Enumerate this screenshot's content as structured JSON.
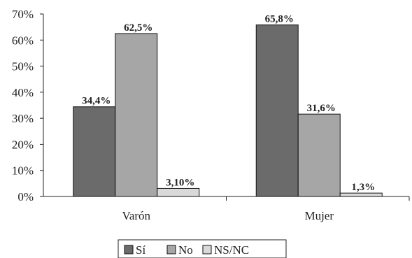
{
  "chart_data": {
    "type": "bar",
    "categories": [
      "Varón",
      "Mujer"
    ],
    "series": [
      {
        "name": "Sí",
        "values": [
          34.4,
          65.8
        ],
        "labels": [
          "34,4%",
          "65,8%"
        ],
        "color": "#6b6b6b"
      },
      {
        "name": "No",
        "values": [
          62.5,
          31.6
        ],
        "labels": [
          "62,5%",
          "31,6%"
        ],
        "color": "#a6a6a6"
      },
      {
        "name": "NS/NC",
        "values": [
          3.1,
          1.3
        ],
        "labels": [
          "3,10%",
          "1,3%"
        ],
        "color": "#d9d9d9"
      }
    ],
    "ylim": [
      0,
      70
    ],
    "yticks": [
      0,
      10,
      20,
      30,
      40,
      50,
      60,
      70
    ],
    "ytick_labels": [
      "0%",
      "10%",
      "20%",
      "30%",
      "40%",
      "50%",
      "60%",
      "70%"
    ],
    "title": "",
    "xlabel": "",
    "ylabel": "",
    "grid": false,
    "legend_position": "bottom"
  }
}
